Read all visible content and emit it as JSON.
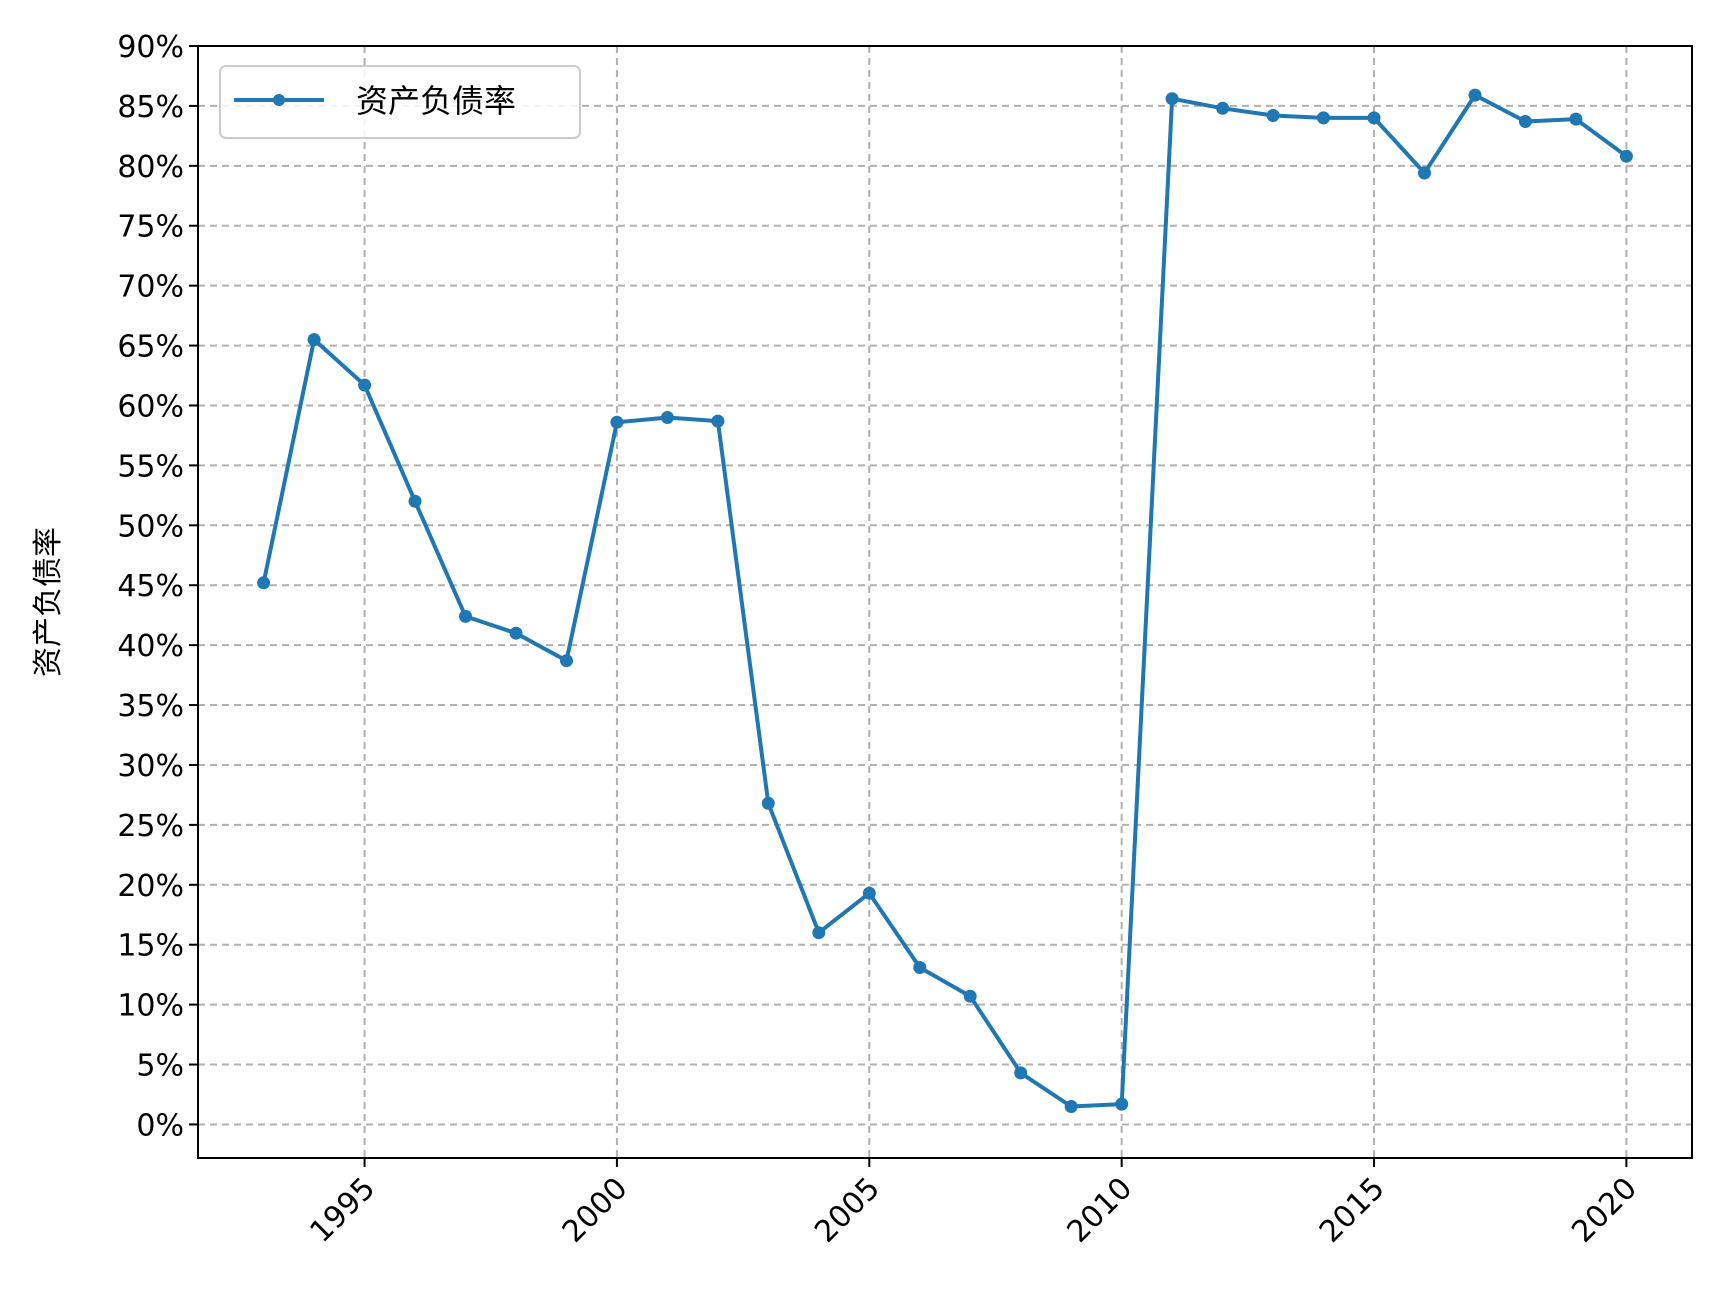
{
  "chart_data": {
    "type": "line",
    "xlabel": "",
    "ylabel": "资产负债率",
    "xlim": [
      1991.7,
      2021.3
    ],
    "ylim": [
      -2.8,
      90
    ],
    "xticks": [
      1995,
      2000,
      2005,
      2010,
      2015,
      2020
    ],
    "yticks": [
      0,
      5,
      10,
      15,
      20,
      25,
      30,
      35,
      40,
      45,
      50,
      55,
      60,
      65,
      70,
      75,
      80,
      85,
      90
    ],
    "ytick_suffix": "%",
    "grid": true,
    "legend_position": "top-left",
    "series": [
      {
        "name": "资产负债率",
        "color": "#1f77b4",
        "marker": "circle",
        "x": [
          1993,
          1994,
          1995,
          1996,
          1997,
          1998,
          1999,
          2000,
          2001,
          2002,
          2003,
          2004,
          2005,
          2006,
          2007,
          2008,
          2009,
          2010,
          2011,
          2012,
          2013,
          2014,
          2015,
          2016,
          2017,
          2018,
          2019,
          2020
        ],
        "y": [
          45.2,
          65.5,
          61.7,
          52.0,
          42.4,
          41.0,
          38.7,
          58.6,
          59.0,
          58.7,
          26.8,
          16.0,
          19.3,
          13.1,
          10.7,
          4.3,
          1.5,
          1.7,
          85.6,
          84.8,
          84.2,
          84.0,
          84.0,
          79.4,
          85.9,
          83.7,
          83.9,
          80.8
        ]
      }
    ]
  }
}
